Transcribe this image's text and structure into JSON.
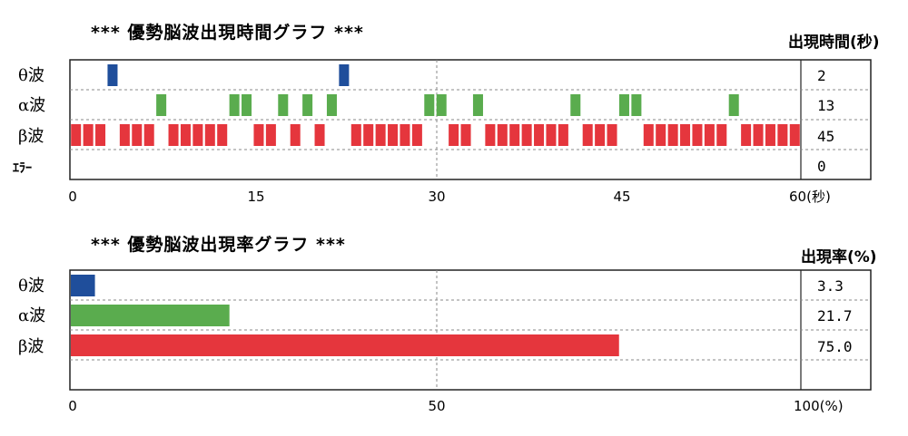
{
  "colors": {
    "theta": "#1f4e9b",
    "alpha": "#5aac4e",
    "beta": "#e5363d",
    "frame": "#222222",
    "grid": "#8a8a8a"
  },
  "chart_data": [
    {
      "type": "bar",
      "orientation": "horizontal-timeline",
      "title": "*** 優勢脳波出現時間グラフ ***",
      "value_header": "出現時間(秒)",
      "x_ticks": [
        "0",
        "15",
        "30",
        "45",
        "60(秒)"
      ],
      "xlim": [
        0,
        60
      ],
      "rows": [
        {
          "label": "θ波",
          "value": "2",
          "color": "#1f4e9b",
          "seconds": [
            3,
            22
          ]
        },
        {
          "label": "α波",
          "value": "13",
          "color": "#5aac4e",
          "seconds": [
            7,
            13,
            14,
            17,
            19,
            21,
            29,
            30,
            33,
            41,
            45,
            46,
            54
          ]
        },
        {
          "label": "β波",
          "value": "45",
          "color": "#e5363d",
          "seconds": [
            0,
            1,
            2,
            4,
            5,
            6,
            8,
            9,
            10,
            11,
            12,
            15,
            16,
            18,
            20,
            23,
            24,
            25,
            26,
            27,
            28,
            31,
            32,
            34,
            35,
            36,
            37,
            38,
            39,
            40,
            42,
            43,
            44,
            47,
            48,
            49,
            50,
            51,
            52,
            53,
            55,
            56,
            57,
            58,
            59
          ]
        },
        {
          "label": "ｴﾗｰ",
          "value": "0",
          "color": "#888888",
          "seconds": []
        }
      ]
    },
    {
      "type": "bar",
      "orientation": "horizontal",
      "title": "*** 優勢脳波出現率グラフ ***",
      "value_header": "出現率(%)",
      "x_ticks": [
        "0",
        "50",
        "100(%)"
      ],
      "xlim": [
        0,
        100
      ],
      "rows": [
        {
          "label": "θ波",
          "value": 3.3,
          "display": "3.3",
          "color": "#1f4e9b"
        },
        {
          "label": "α波",
          "value": 21.7,
          "display": "21.7",
          "color": "#5aac4e"
        },
        {
          "label": "β波",
          "value": 75.0,
          "display": "75.0",
          "color": "#e5363d"
        }
      ]
    }
  ]
}
